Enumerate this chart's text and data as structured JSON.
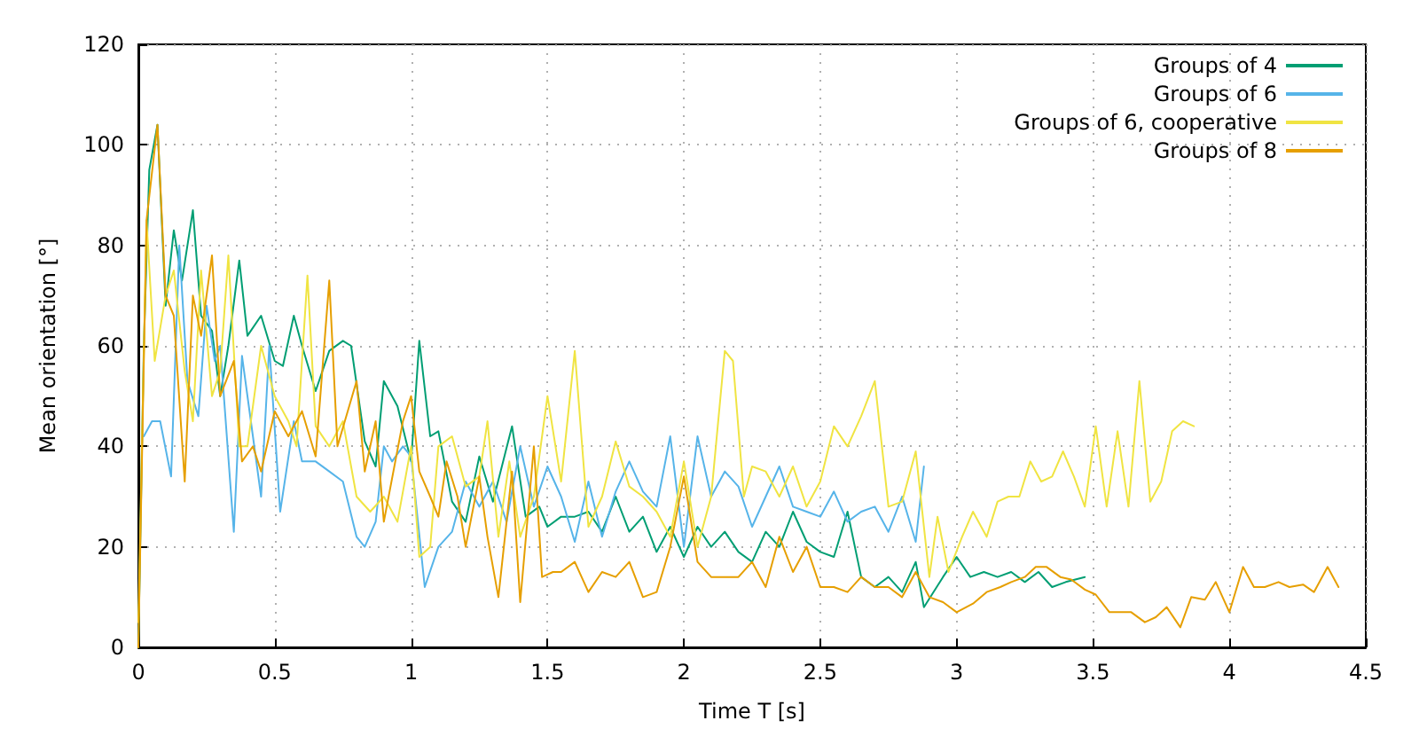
{
  "chart_data": {
    "type": "line",
    "xlabel": "Time T [s]",
    "ylabel": "Mean orientation [°]",
    "xlim": [
      0,
      4.5
    ],
    "xticks": [
      0,
      0.5,
      1,
      1.5,
      2,
      2.5,
      3,
      3.5,
      4,
      4.5
    ],
    "ylim": [
      0,
      120
    ],
    "yticks": [
      0,
      20,
      40,
      60,
      80,
      100,
      120
    ],
    "grid": true,
    "legend": "top right",
    "marker": "none",
    "line_style": "solid",
    "series": [
      {
        "name": "Groups of 4",
        "color": "#009e73",
        "x": [
          0,
          0.02,
          0.04,
          0.07,
          0.1,
          0.13,
          0.16,
          0.2,
          0.23,
          0.27,
          0.3,
          0.33,
          0.37,
          0.4,
          0.45,
          0.5,
          0.53,
          0.57,
          0.6,
          0.65,
          0.7,
          0.75,
          0.78,
          0.83,
          0.87,
          0.9,
          0.95,
          1.0,
          1.03,
          1.07,
          1.1,
          1.15,
          1.2,
          1.25,
          1.3,
          1.37,
          1.42,
          1.47,
          1.5,
          1.55,
          1.6,
          1.65,
          1.7,
          1.75,
          1.8,
          1.85,
          1.9,
          1.95,
          2.0,
          2.05,
          2.1,
          2.15,
          2.2,
          2.25,
          2.3,
          2.35,
          2.4,
          2.45,
          2.5,
          2.55,
          2.6,
          2.65,
          2.7,
          2.75,
          2.8,
          2.85,
          2.88,
          2.95,
          3.0,
          3.05,
          3.1,
          3.15,
          3.2,
          3.25,
          3.3,
          3.35,
          3.4,
          3.47
        ],
        "values": [
          0,
          60,
          95,
          104,
          68,
          83,
          73,
          87,
          66,
          63,
          50,
          60,
          77,
          62,
          66,
          57,
          56,
          66,
          60,
          51,
          59,
          61,
          60,
          41,
          36,
          53,
          48,
          37,
          61,
          42,
          43,
          29,
          25,
          38,
          29,
          44,
          26,
          28,
          24,
          26,
          26,
          27,
          23,
          30,
          23,
          26,
          19,
          24,
          18,
          24,
          20,
          23,
          19,
          17,
          23,
          20,
          27,
          21,
          19,
          18,
          27,
          14,
          12,
          14,
          11,
          17,
          8,
          14,
          18,
          14,
          15,
          14,
          15,
          13,
          15,
          12,
          13,
          14
        ]
      },
      {
        "name": "Groups of 6",
        "color": "#56b4e9",
        "x": [
          0.02,
          0.05,
          0.08,
          0.12,
          0.15,
          0.18,
          0.22,
          0.25,
          0.28,
          0.3,
          0.35,
          0.38,
          0.42,
          0.45,
          0.48,
          0.52,
          0.57,
          0.6,
          0.65,
          0.7,
          0.75,
          0.8,
          0.83,
          0.87,
          0.9,
          0.93,
          0.97,
          1.0,
          1.05,
          1.1,
          1.15,
          1.2,
          1.25,
          1.3,
          1.35,
          1.4,
          1.45,
          1.5,
          1.55,
          1.6,
          1.65,
          1.7,
          1.75,
          1.8,
          1.85,
          1.9,
          1.95,
          2.0,
          2.05,
          2.1,
          2.15,
          2.2,
          2.25,
          2.3,
          2.35,
          2.4,
          2.45,
          2.5,
          2.55,
          2.6,
          2.65,
          2.7,
          2.75,
          2.8,
          2.85,
          2.88
        ],
        "values": [
          42,
          45,
          45,
          34,
          80,
          53,
          46,
          68,
          57,
          60,
          23,
          58,
          42,
          30,
          60,
          27,
          45,
          37,
          37,
          35,
          33,
          22,
          20,
          25,
          40,
          37,
          40,
          38,
          12,
          20,
          23,
          33,
          28,
          33,
          25,
          40,
          28,
          36,
          30,
          21,
          33,
          22,
          31,
          37,
          31,
          28,
          42,
          20,
          42,
          30,
          35,
          32,
          24,
          30,
          36,
          28,
          27,
          26,
          31,
          25,
          27,
          28,
          23,
          30,
          21,
          36
        ]
      },
      {
        "name": "Groups of 6, cooperative",
        "color": "#f0e442",
        "x": [
          0,
          0.03,
          0.06,
          0.1,
          0.13,
          0.17,
          0.2,
          0.23,
          0.27,
          0.3,
          0.33,
          0.37,
          0.4,
          0.45,
          0.5,
          0.55,
          0.58,
          0.62,
          0.65,
          0.7,
          0.75,
          0.8,
          0.85,
          0.9,
          0.95,
          1.0,
          1.03,
          1.07,
          1.1,
          1.15,
          1.2,
          1.25,
          1.28,
          1.32,
          1.36,
          1.4,
          1.45,
          1.5,
          1.55,
          1.6,
          1.65,
          1.7,
          1.75,
          1.8,
          1.85,
          1.9,
          1.95,
          2.0,
          2.05,
          2.1,
          2.15,
          2.18,
          2.22,
          2.25,
          2.3,
          2.35,
          2.4,
          2.45,
          2.5,
          2.55,
          2.6,
          2.65,
          2.7,
          2.75,
          2.8,
          2.85,
          2.9,
          2.93,
          2.97,
          3.02,
          3.06,
          3.11,
          3.15,
          3.19,
          3.23,
          3.27,
          3.31,
          3.35,
          3.39,
          3.43,
          3.47,
          3.51,
          3.55,
          3.59,
          3.63,
          3.67,
          3.71,
          3.75,
          3.79,
          3.83,
          3.87
        ],
        "values": [
          5,
          85,
          57,
          70,
          75,
          55,
          45,
          75,
          50,
          55,
          78,
          40,
          40,
          60,
          50,
          45,
          40,
          74,
          44,
          40,
          45,
          30,
          27,
          30,
          25,
          40,
          18,
          20,
          40,
          42,
          32,
          34,
          45,
          22,
          37,
          22,
          30,
          50,
          33,
          59,
          24,
          30,
          41,
          32,
          30,
          27,
          22,
          37,
          20,
          30,
          59,
          57,
          30,
          36,
          35,
          30,
          36,
          28,
          33,
          44,
          40,
          46,
          53,
          28,
          29,
          39,
          14,
          26,
          15,
          22,
          27,
          22,
          29,
          30,
          30,
          37,
          33,
          34,
          39,
          34,
          28,
          44,
          28,
          43,
          28,
          53,
          29,
          33,
          43,
          45,
          44
        ]
      },
      {
        "name": "Groups of 8",
        "color": "#e69f00",
        "x": [
          0,
          0.03,
          0.07,
          0.1,
          0.13,
          0.17,
          0.2,
          0.23,
          0.27,
          0.3,
          0.35,
          0.38,
          0.42,
          0.45,
          0.5,
          0.55,
          0.6,
          0.65,
          0.7,
          0.73,
          0.8,
          0.83,
          0.87,
          0.9,
          0.97,
          1.0,
          1.03,
          1.07,
          1.1,
          1.13,
          1.17,
          1.2,
          1.25,
          1.28,
          1.32,
          1.37,
          1.4,
          1.45,
          1.48,
          1.52,
          1.55,
          1.6,
          1.65,
          1.7,
          1.75,
          1.8,
          1.85,
          1.9,
          1.95,
          2.0,
          2.05,
          2.1,
          2.15,
          2.2,
          2.25,
          2.3,
          2.35,
          2.4,
          2.45,
          2.5,
          2.55,
          2.6,
          2.65,
          2.7,
          2.75,
          2.8,
          2.85,
          2.9,
          2.95,
          3.0,
          3.06,
          3.11,
          3.16,
          3.2,
          3.25,
          3.29,
          3.33,
          3.38,
          3.42,
          3.47,
          3.51,
          3.56,
          3.6,
          3.64,
          3.69,
          3.73,
          3.77,
          3.82,
          3.86,
          3.91,
          3.95,
          4.0,
          4.05,
          4.09,
          4.13,
          4.18,
          4.22,
          4.27,
          4.31,
          4.36,
          4.4
        ],
        "values": [
          0,
          85,
          104,
          70,
          66,
          33,
          70,
          62,
          78,
          50,
          57,
          37,
          40,
          35,
          47,
          42,
          47,
          38,
          73,
          40,
          53,
          35,
          45,
          25,
          45,
          50,
          35,
          30,
          26,
          37,
          30,
          20,
          34,
          22,
          10,
          35,
          9,
          40,
          14,
          15,
          15,
          17,
          11,
          15,
          14,
          17,
          10,
          11,
          20,
          34,
          17,
          14,
          14,
          14,
          17,
          12,
          22,
          15,
          20,
          12,
          12,
          11,
          14,
          12,
          12,
          10,
          15,
          10,
          9,
          7,
          8.7,
          11,
          12,
          13,
          14,
          16,
          16,
          14,
          13.5,
          11.5,
          10.5,
          7,
          7,
          7,
          5,
          6,
          8,
          4,
          10,
          9.5,
          13,
          7,
          16,
          12,
          12,
          13,
          12,
          12.5,
          11,
          16,
          12
        ]
      }
    ]
  }
}
